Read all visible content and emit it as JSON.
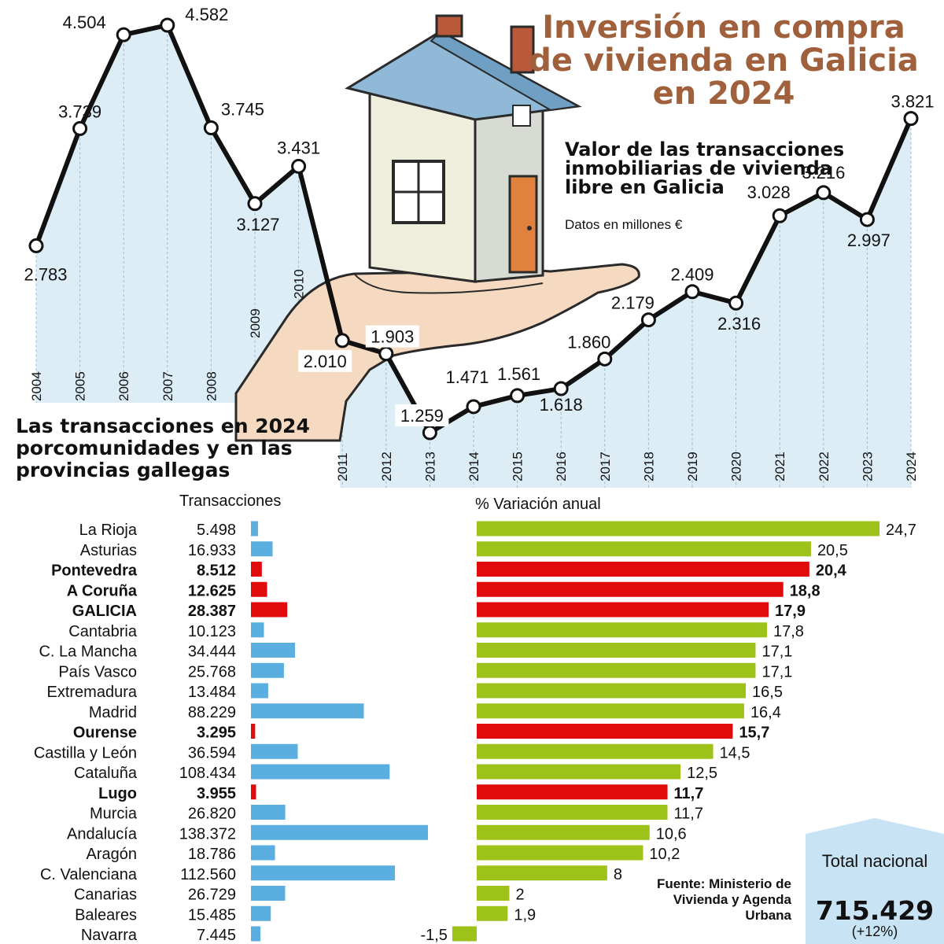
{
  "header": {
    "title": "Inversión en compra de vivienda en Galicia en 2024",
    "subtitle": "Valor de las transacciones inmobiliarias de vivienda libre en Galicia",
    "units": "Datos en millones €"
  },
  "regions_section": {
    "title": "Las transacciones en 2024 porcomunidades y en las provincias gallegas",
    "col_transactions": "Transacciones",
    "col_variation": "% Variación anual"
  },
  "source": "Fuente: Ministerio de Vivienda y Agenda Urbana",
  "total": {
    "label": "Total nacional",
    "value": "715.429",
    "variation": "(+12%)"
  },
  "colors": {
    "area_fill": "#dcedf6",
    "line": "#111111",
    "galicia": "#e10b0b",
    "blue_bar": "#5aaee0",
    "green_bar": "#9dc31a",
    "title_brown": "#a0603c",
    "total_box": "#c8e3f4"
  },
  "chart_data": [
    {
      "type": "line",
      "x": [
        "2004",
        "2005",
        "2006",
        "2007",
        "2008",
        "2009",
        "2010",
        "2011",
        "2012",
        "2013",
        "2014",
        "2015",
        "2016",
        "2017",
        "2018",
        "2019",
        "2020",
        "2021",
        "2022",
        "2023",
        "2024"
      ],
      "values": [
        2783,
        3739,
        4504,
        4582,
        3745,
        3127,
        3431,
        2010,
        1903,
        1259,
        1471,
        1561,
        1618,
        1860,
        2179,
        2409,
        2316,
        3028,
        3216,
        2997,
        3821
      ],
      "labels": [
        "2.783",
        "3.739",
        "4.504",
        "4.582",
        "3.745",
        "3.127",
        "3.431",
        "2.010",
        "1.903",
        "1.259",
        "1.471",
        "1.561",
        "1.618",
        "1.860",
        "2.179",
        "2.409",
        "2.316",
        "3.028",
        "3.216",
        "2.997",
        "3.821"
      ],
      "ylim": [
        0,
        4800
      ]
    },
    {
      "type": "bar",
      "orientation": "horizontal",
      "categories": [
        "La Rioja",
        "Asturias",
        "Pontevedra",
        "A Coruña",
        "GALICIA",
        "Cantabria",
        "C. La Mancha",
        "País Vasco",
        "Extremadura",
        "Madrid",
        "Ourense",
        "Castilla y León",
        "Cataluña",
        "Lugo",
        "Murcia",
        "Andalucía",
        "Aragón",
        "C. Valenciana",
        "Canarias",
        "Baleares",
        "Navarra"
      ],
      "galicia": [
        false,
        false,
        true,
        true,
        true,
        false,
        false,
        false,
        false,
        false,
        true,
        false,
        false,
        true,
        false,
        false,
        false,
        false,
        false,
        false,
        false
      ],
      "transactions": [
        5498,
        16933,
        8512,
        12625,
        28387,
        10123,
        34444,
        25768,
        13484,
        88229,
        3295,
        36594,
        108434,
        3955,
        26820,
        138372,
        18786,
        112560,
        26729,
        15485,
        7445
      ],
      "transactions_labels": [
        "5.498",
        "16.933",
        "8.512",
        "12.625",
        "28.387",
        "10.123",
        "34.444",
        "25.768",
        "13.484",
        "88.229",
        "3.295",
        "36.594",
        "108.434",
        "3.955",
        "26.820",
        "138.372",
        "18.786",
        "112.560",
        "26.729",
        "15.485",
        "7.445"
      ],
      "variation": [
        24.7,
        20.5,
        20.4,
        18.8,
        17.9,
        17.8,
        17.1,
        17.1,
        16.5,
        16.4,
        15.7,
        14.5,
        12.5,
        11.7,
        11.7,
        10.6,
        10.2,
        8,
        2,
        1.9,
        -1.5
      ],
      "variation_labels": [
        "24,7",
        "20,5",
        "20,4",
        "18,8",
        "17,9",
        "17,8",
        "17,1",
        "17,1",
        "16,5",
        "16,4",
        "15,7",
        "14,5",
        "12,5",
        "11,7",
        "11,7",
        "10,6",
        "10,2",
        "8",
        "2",
        "1,9",
        "-1,5"
      ]
    }
  ]
}
